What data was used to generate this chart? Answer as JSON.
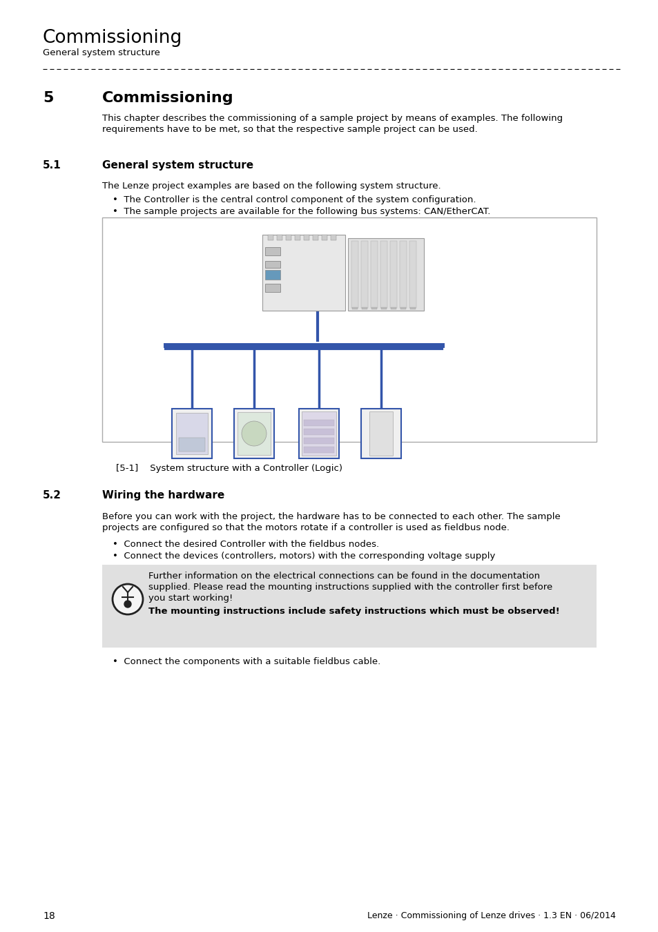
{
  "page_title": "Commissioning",
  "page_subtitle": "General system structure",
  "section_num": "5",
  "section_title": "Commissioning",
  "section_body_1": "This chapter describes the commissioning of a sample project by means of examples. The following",
  "section_body_2": "requirements have to be met, so that the respective sample project can be used.",
  "sub_section_num": "5.1",
  "sub_section_title": "General system structure",
  "sub_section_intro": "The Lenze project examples are based on the following system structure.",
  "bullet1": "•  The Controller is the central control component of the system configuration.",
  "bullet2": "•  The sample projects are available for the following bus systems: CAN/EtherCAT.",
  "figure_caption": "[5-1]    System structure with a Controller (Logic)",
  "sub_section2_num": "5.2",
  "sub_section2_title": "Wiring the hardware",
  "sub_section2_body_1": "Before you can work with the project, the hardware has to be connected to each other. The sample",
  "sub_section2_body_2": "projects are configured so that the motors rotate if a controller is used as fieldbus node.",
  "bullet3": "•  Connect the desired Controller with the fieldbus nodes.",
  "bullet4": "•  Connect the devices (controllers, motors) with the corresponding voltage supply",
  "note_line1": "Further information on the electrical connections can be found in the documentation",
  "note_line2": "supplied. Please read the mounting instructions supplied with the controller first before",
  "note_line3": "you start working!",
  "note_bold": "The mounting instructions include safety instructions which must be observed!",
  "bullet5": "•  Connect the components with a suitable fieldbus cable.",
  "page_num": "18",
  "footer_text": "Lenze · Commissioning of Lenze drives · 1.3 EN · 06/2014",
  "bg_color": "#ffffff",
  "text_color": "#000000",
  "note_bg_color": "#e0e0e0",
  "box_border_color": "#999999",
  "blue_color": "#3355aa"
}
